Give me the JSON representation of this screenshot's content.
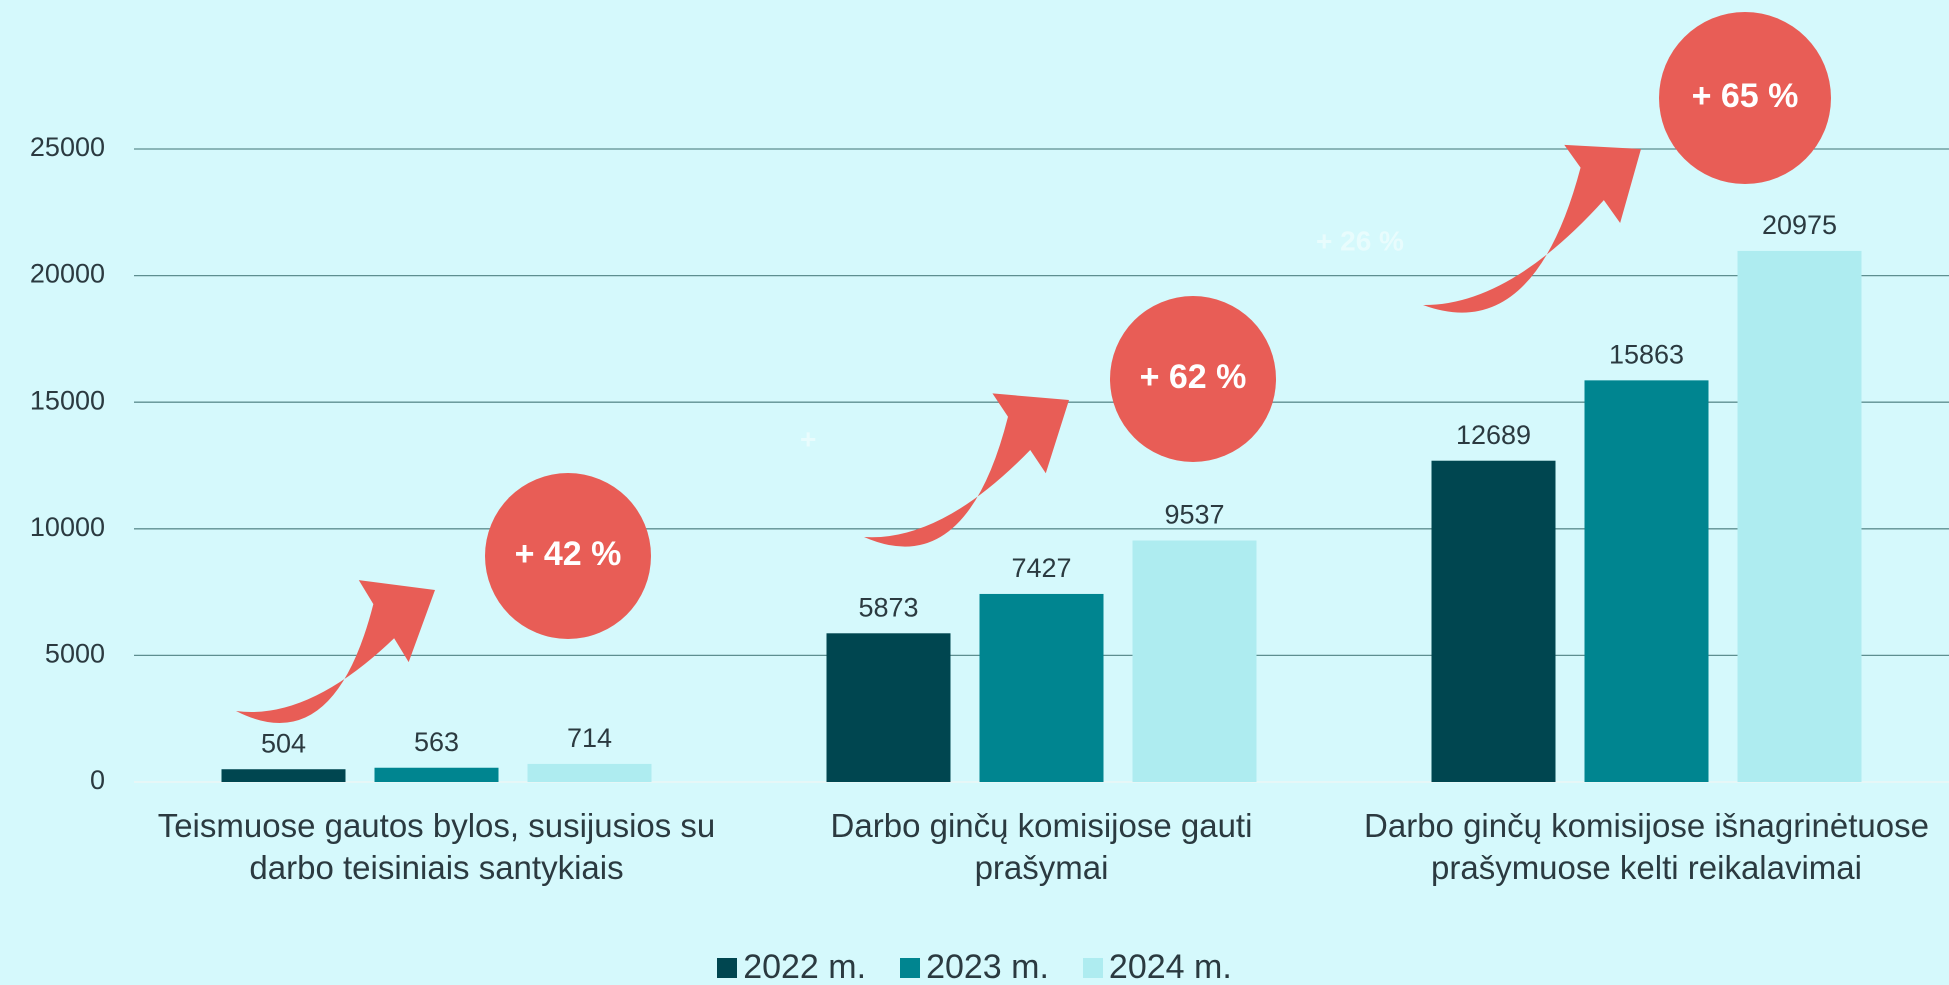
{
  "chart_data": {
    "type": "bar",
    "categories": [
      "Teismuose gautos bylos, susijusios su darbo teisiniais santykiais",
      "Darbo ginčų komisijose gauti prašymai",
      "Darbo ginčų komisijose išnagrinėtuose prašymuose kelti reikalavimai"
    ],
    "series": [
      {
        "name": "2022 m.",
        "color": "#004650",
        "values": [
          504,
          5873,
          12689
        ]
      },
      {
        "name": "2023 m.",
        "color": "#008590",
        "values": [
          563,
          7427,
          15863
        ]
      },
      {
        "name": "2024 m.",
        "color": "#aeecf0",
        "values": [
          714,
          9537,
          20975
        ]
      }
    ],
    "ylim": [
      0,
      25000
    ],
    "yticks": [
      0,
      5000,
      10000,
      15000,
      20000,
      25000
    ],
    "grid": true,
    "legend": "bottom",
    "annotations": [
      "+ 42 %",
      "+ 62 %",
      "+ 65 %",
      "+ 26 %",
      "+"
    ]
  }
}
